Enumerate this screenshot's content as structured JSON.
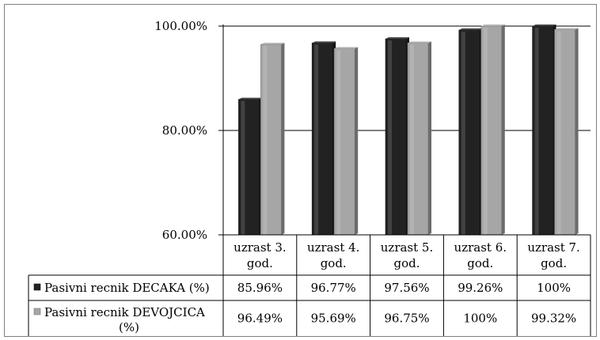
{
  "chart_data": {
    "type": "bar",
    "title": "",
    "xlabel": "",
    "ylabel": "",
    "ylim": [
      0.6,
      1.0
    ],
    "yticks": [
      0.6,
      0.8,
      1.0
    ],
    "ytick_labels": [
      "60.00%",
      "80.00%",
      "100.00%"
    ],
    "grid": true,
    "legend": "data-table",
    "categories": [
      [
        "uzrast 3.",
        "god."
      ],
      [
        "uzrast 4.",
        "god."
      ],
      [
        "uzrast 5.",
        "god."
      ],
      [
        "uzrast 6.",
        "god."
      ],
      [
        "uzrast 7.",
        "god."
      ]
    ],
    "series": [
      {
        "name_lines": [
          "Pasivni recnik DECAKA (%)"
        ],
        "color": "#222222",
        "values": [
          0.8596,
          0.9677,
          0.9756,
          0.9926,
          1.0
        ],
        "labels": [
          "85.96%",
          "96.77%",
          "97.56%",
          "99.26%",
          "100%"
        ]
      },
      {
        "name_lines": [
          "Pasivni recnik DEVOJCICA",
          "(%)"
        ],
        "color": "#a6a6a6",
        "values": [
          0.9649,
          0.9569,
          0.9675,
          1.0,
          0.9932
        ],
        "labels": [
          "96.49%",
          "95.69%",
          "96.75%",
          "100%",
          "99.32%"
        ]
      }
    ]
  }
}
